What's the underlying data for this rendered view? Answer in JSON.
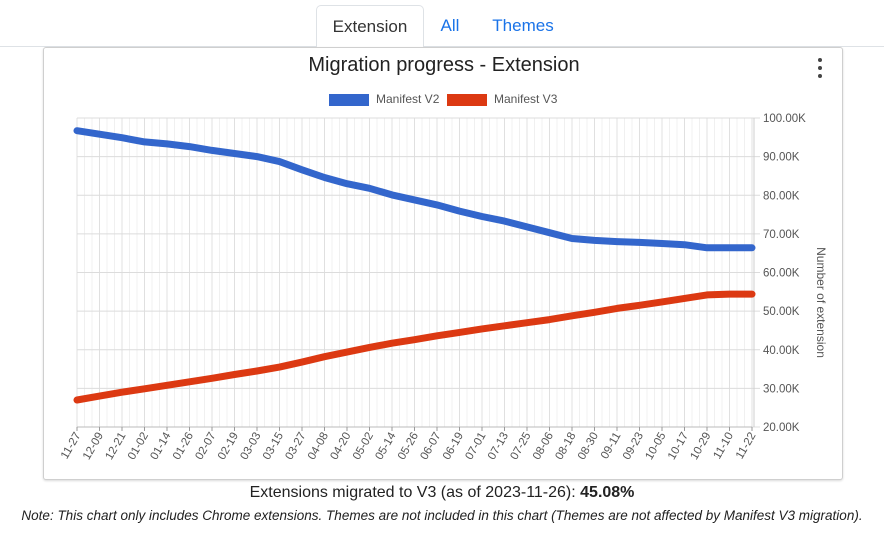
{
  "tabs": [
    {
      "label": "Extension",
      "active": true
    },
    {
      "label": "All",
      "active": false
    },
    {
      "label": "Themes",
      "active": false
    }
  ],
  "chart_data": {
    "type": "line",
    "title": "Migration progress - Extension",
    "ylabel": "Number of extension",
    "y_axis_position": "right",
    "ylim": [
      20000,
      100000
    ],
    "y_ticks": [
      "20.00K",
      "30.00K",
      "40.00K",
      "50.00K",
      "60.00K",
      "70.00K",
      "80.00K",
      "90.00K",
      "100.00K"
    ],
    "y_tick_values": [
      20000,
      30000,
      40000,
      50000,
      60000,
      70000,
      80000,
      90000,
      100000
    ],
    "legend_position": "top",
    "grid": true,
    "categories": [
      "11-27",
      "12-09",
      "12-21",
      "01-02",
      "01-14",
      "01-26",
      "02-07",
      "02-19",
      "03-03",
      "03-15",
      "03-27",
      "04-08",
      "04-20",
      "05-02",
      "05-14",
      "05-26",
      "06-07",
      "06-19",
      "07-01",
      "07-13",
      "07-25",
      "08-06",
      "08-18",
      "08-30",
      "09-11",
      "09-23",
      "10-05",
      "10-17",
      "10-29",
      "11-10",
      "11-22"
    ],
    "series": [
      {
        "name": "Manifest V2",
        "color": "#3366cc",
        "values": [
          96700,
          95800,
          94900,
          93800,
          93300,
          92600,
          91600,
          90800,
          90000,
          88700,
          86600,
          84600,
          83000,
          81800,
          80100,
          78800,
          77500,
          75900,
          74500,
          73300,
          71800,
          70300,
          68800,
          68300,
          68000,
          67800,
          67500,
          67200,
          66400,
          66400,
          66400
        ]
      },
      {
        "name": "Manifest V3",
        "color": "#dc3912",
        "values": [
          27000,
          28000,
          29000,
          29900,
          30800,
          31700,
          32600,
          33600,
          34500,
          35500,
          36800,
          38200,
          39400,
          40600,
          41700,
          42600,
          43600,
          44500,
          45400,
          46200,
          47000,
          47800,
          48800,
          49700,
          50700,
          51500,
          52400,
          53300,
          54200,
          54400,
          54400
        ]
      }
    ]
  },
  "summary": {
    "prefix": "Extensions migrated to V3 (as of 2023-11-26): ",
    "value": "45.08%"
  },
  "note": "Note: This chart only includes Chrome extensions. Themes are not included in this chart (Themes are not affected by Manifest V3 migration)."
}
